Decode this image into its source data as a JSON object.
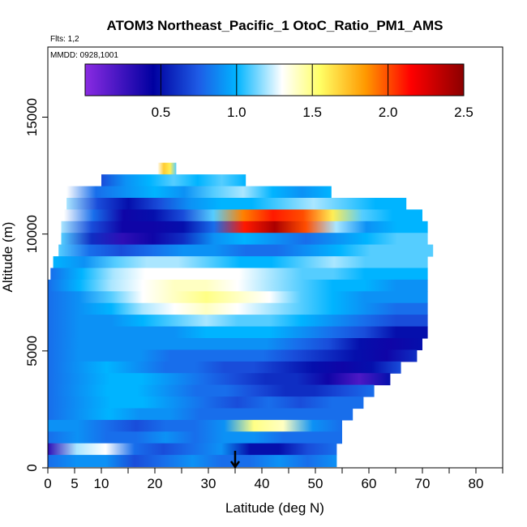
{
  "chart_data": {
    "type": "heatmap",
    "title": "ATOM3 Northeast_Pacific_1 OtoC_Ratio_PM1_AMS",
    "flights_note": "Flts: 1,2",
    "dates_note": "MMDD: 0928,1001",
    "xlabel": "Latitude (deg N)",
    "ylabel": "Altitude (m)",
    "xlim": [
      0,
      85
    ],
    "ylim": [
      0,
      18000
    ],
    "x_ticks": [
      0,
      5,
      10,
      20,
      30,
      40,
      50,
      60,
      70,
      80
    ],
    "x_minor_ticks": [
      15,
      25,
      35,
      45,
      55,
      65,
      75,
      85
    ],
    "y_ticks": [
      0,
      5000,
      10000,
      15000
    ],
    "colorbar": {
      "range": [
        0,
        2.5
      ],
      "ticks": [
        0.5,
        1.0,
        1.5,
        2.0,
        2.5
      ],
      "tick_labels": [
        "0.5",
        "1.0",
        "1.5",
        "2.0",
        "2.5"
      ],
      "colors": [
        "#8a2be2",
        "#0000a0",
        "#1e5ce6",
        "#00b4ff",
        "#ffffff",
        "#ffff66",
        "#ff9900",
        "#ff0000",
        "#8b0000"
      ]
    },
    "marker": {
      "x": 35,
      "label": "arrow"
    },
    "rows": [
      {
        "alt": 12800,
        "x": [
          20.5,
          24
        ],
        "values": [
          1.3,
          1.7,
          1.6,
          1.1
        ]
      },
      {
        "alt": 12300,
        "x": [
          10,
          37
        ],
        "values": [
          0.7,
          0.9,
          1.0,
          1.1,
          1.0,
          1.1,
          1.0
        ]
      },
      {
        "alt": 11800,
        "x": [
          3.5,
          53
        ],
        "values": [
          1.3,
          0.8,
          0.9,
          1.0,
          0.9,
          1.1,
          1.2,
          1.0,
          0.9,
          1.0
        ]
      },
      {
        "alt": 11300,
        "x": [
          3.5,
          67
        ],
        "values": [
          1.2,
          0.7,
          0.5,
          0.7,
          0.9,
          1.0,
          1.0,
          1.1,
          1.2,
          1.1,
          1.0,
          1.0
        ]
      },
      {
        "alt": 10800,
        "x": [
          3,
          70
        ],
        "values": [
          1.3,
          0.8,
          0.4,
          0.5,
          0.7,
          1.1,
          1.9,
          2.1,
          2.0,
          1.6,
          1.1,
          1.0,
          1.0
        ]
      },
      {
        "alt": 10300,
        "x": [
          2.5,
          71
        ],
        "values": [
          1.2,
          0.7,
          0.4,
          0.4,
          0.5,
          0.8,
          2.1,
          2.4,
          2.0,
          1.2,
          0.9,
          1.0,
          1.0
        ]
      },
      {
        "alt": 9800,
        "x": [
          2.5,
          71
        ],
        "values": [
          1.1,
          0.6,
          0.3,
          0.4,
          0.6,
          0.9,
          1.0,
          0.9,
          0.8,
          0.9,
          1.0,
          1.1,
          1.1
        ]
      },
      {
        "alt": 9300,
        "x": [
          2,
          72
        ],
        "values": [
          1.1,
          0.8,
          0.7,
          0.8,
          0.9,
          0.9,
          0.8,
          0.8,
          0.9,
          1.0,
          1.1,
          1.1,
          1.1
        ]
      },
      {
        "alt": 8800,
        "x": [
          1,
          71
        ],
        "values": [
          1.0,
          0.9,
          1.1,
          1.2,
          1.2,
          1.1,
          1.0,
          1.0,
          1.1,
          1.2,
          1.1,
          1.1,
          1.1
        ]
      },
      {
        "alt": 8300,
        "x": [
          0.5,
          71
        ],
        "values": [
          0.8,
          1.0,
          1.2,
          1.3,
          1.3,
          1.3,
          1.3,
          1.2,
          1.1,
          1.1,
          1.0,
          1.0,
          1.0
        ]
      },
      {
        "alt": 7800,
        "x": [
          0,
          71
        ],
        "values": [
          0.8,
          1.0,
          1.2,
          1.3,
          1.4,
          1.4,
          1.3,
          1.2,
          1.1,
          1.0,
          1.0,
          0.9,
          0.9
        ]
      },
      {
        "alt": 7300,
        "x": [
          0,
          71
        ],
        "values": [
          0.8,
          0.9,
          1.1,
          1.3,
          1.4,
          1.5,
          1.4,
          1.3,
          1.1,
          1.0,
          0.9,
          0.9,
          0.9
        ]
      },
      {
        "alt": 6800,
        "x": [
          0,
          71
        ],
        "values": [
          0.8,
          0.9,
          1.0,
          1.2,
          1.3,
          1.4,
          1.3,
          1.2,
          1.1,
          1.0,
          0.9,
          0.8,
          0.8
        ]
      },
      {
        "alt": 6300,
        "x": [
          0,
          71
        ],
        "values": [
          0.8,
          0.9,
          0.9,
          1.0,
          1.1,
          1.2,
          1.1,
          1.1,
          1.0,
          0.9,
          0.8,
          0.7,
          0.7
        ]
      },
      {
        "alt": 5800,
        "x": [
          0,
          71
        ],
        "values": [
          0.8,
          0.9,
          0.9,
          0.9,
          0.9,
          1.0,
          1.0,
          1.0,
          0.9,
          0.8,
          0.7,
          0.5,
          0.5
        ]
      },
      {
        "alt": 5300,
        "x": [
          0,
          70
        ],
        "values": [
          0.8,
          0.9,
          0.9,
          0.9,
          0.9,
          0.9,
          0.9,
          0.9,
          0.8,
          0.7,
          0.5,
          0.4,
          0.5
        ]
      },
      {
        "alt": 4800,
        "x": [
          0,
          69
        ],
        "values": [
          0.8,
          0.9,
          0.9,
          0.9,
          0.8,
          0.8,
          0.8,
          0.8,
          0.7,
          0.6,
          0.5,
          0.4,
          0.6
        ]
      },
      {
        "alt": 4300,
        "x": [
          0,
          66
        ],
        "values": [
          0.8,
          0.9,
          1.0,
          0.9,
          0.8,
          0.8,
          0.7,
          0.7,
          0.6,
          0.5,
          0.4,
          0.5,
          0.7
        ]
      },
      {
        "alt": 3800,
        "x": [
          0,
          64
        ],
        "values": [
          0.8,
          0.9,
          1.0,
          1.0,
          0.9,
          0.8,
          0.7,
          0.6,
          0.6,
          0.4,
          0.2,
          0.5
        ]
      },
      {
        "alt": 3300,
        "x": [
          0,
          61
        ],
        "values": [
          0.8,
          0.9,
          1.0,
          1.0,
          0.9,
          0.8,
          0.8,
          0.7,
          0.6,
          0.6,
          0.7,
          0.8
        ]
      },
      {
        "alt": 2800,
        "x": [
          0,
          59
        ],
        "values": [
          0.8,
          0.9,
          1.0,
          1.0,
          0.9,
          0.8,
          0.7,
          0.8,
          0.7,
          0.8,
          0.8
        ]
      },
      {
        "alt": 2300,
        "x": [
          0,
          57
        ],
        "values": [
          0.8,
          0.9,
          1.0,
          0.9,
          0.9,
          0.8,
          0.8,
          0.8,
          0.8,
          0.8,
          0.8
        ]
      },
      {
        "alt": 1800,
        "x": [
          0,
          55
        ],
        "values": [
          0.9,
          0.9,
          0.8,
          0.7,
          0.8,
          0.8,
          0.9,
          1.5,
          1.4,
          0.9,
          0.8
        ]
      },
      {
        "alt": 1300,
        "x": [
          0,
          55
        ],
        "values": [
          0.8,
          0.9,
          0.8,
          0.8,
          0.9,
          0.8,
          0.9,
          0.9,
          0.8,
          0.8,
          0.8
        ]
      },
      {
        "alt": 800,
        "x": [
          0,
          54
        ],
        "values": [
          0.3,
          1.2,
          1.3,
          0.8,
          0.7,
          0.8,
          0.9,
          0.5,
          0.5,
          0.7,
          0.8
        ]
      },
      {
        "alt": 300,
        "x": [
          0,
          54
        ],
        "values": [
          0.8,
          0.9,
          0.9,
          0.7,
          0.8,
          0.9,
          0.8,
          0.8,
          0.9,
          0.8,
          0.9
        ]
      }
    ]
  }
}
